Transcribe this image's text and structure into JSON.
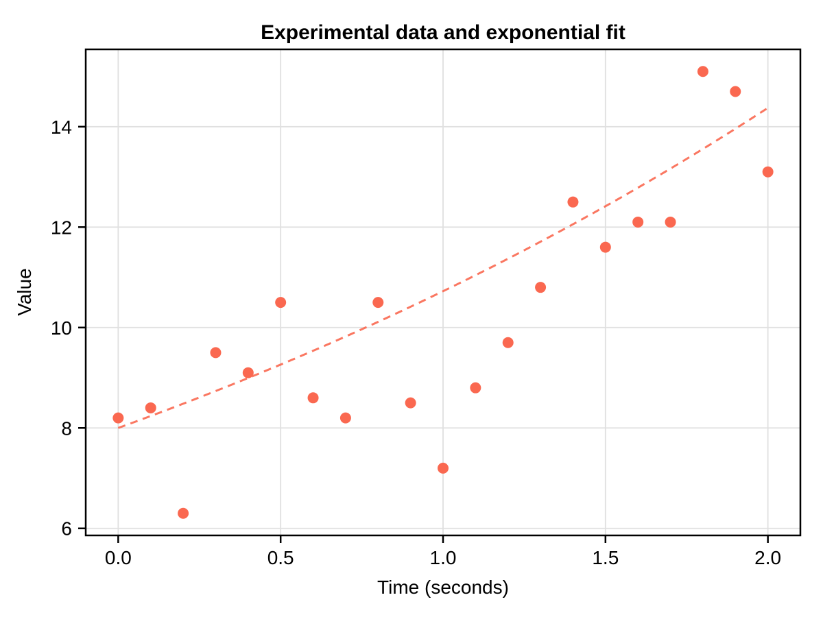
{
  "figure": {
    "title": "Experimental data and exponential fit",
    "xlabel": "Time (seconds)",
    "ylabel": "Value"
  },
  "chart_data": {
    "type": "scatter",
    "title": "Experimental data and exponential fit",
    "xlabel": "Time (seconds)",
    "ylabel": "Value",
    "x": [
      0.0,
      0.1,
      0.2,
      0.3,
      0.4,
      0.5,
      0.6,
      0.7,
      0.8,
      0.9,
      1.0,
      1.1,
      1.2,
      1.3,
      1.4,
      1.5,
      1.6,
      1.7,
      1.8,
      1.9,
      2.0
    ],
    "y": [
      8.2,
      8.4,
      6.3,
      9.5,
      9.1,
      10.5,
      8.6,
      8.2,
      10.5,
      8.5,
      7.2,
      8.8,
      9.7,
      10.8,
      12.5,
      11.6,
      12.1,
      12.1,
      15.1,
      14.7,
      13.1
    ],
    "fit": {
      "type": "exponential",
      "a": 8.0,
      "b": 0.293,
      "x_start": 0.0,
      "x_end": 2.0,
      "line_style": "dashed"
    },
    "xlim": [
      -0.1,
      2.1
    ],
    "ylim": [
      5.86,
      15.54
    ],
    "x_ticks": [
      0.0,
      0.5,
      1.0,
      1.5,
      2.0
    ],
    "x_tick_labels": [
      "0.0",
      "0.5",
      "1.0",
      "1.5",
      "2.0"
    ],
    "y_ticks": [
      6,
      8,
      10,
      12,
      14
    ],
    "y_tick_labels": [
      "6",
      "8",
      "10",
      "12",
      "14"
    ],
    "grid": true,
    "legend": false,
    "colors": {
      "points": "#FA6850",
      "fit_line": "#FA6850",
      "grid": "#E0E0E0",
      "axis": "#000000",
      "background": "#FFFFFF"
    }
  }
}
